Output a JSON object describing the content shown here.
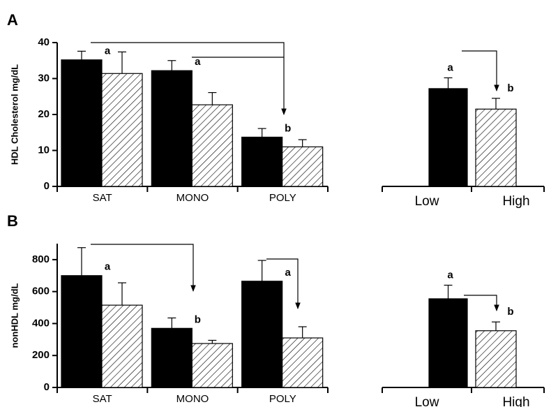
{
  "chart_data": [
    {
      "type": "bar",
      "panel": "A",
      "ylabel": "HDL Cholesterol mg/dL",
      "categories": [
        "SAT",
        "MONO",
        "POLY"
      ],
      "ylim": [
        0,
        40
      ],
      "yticks": [
        0,
        10,
        20,
        30,
        40
      ],
      "series": [
        {
          "color": "#000000",
          "fill": "solid",
          "values": [
            35.2,
            32.2,
            13.7
          ],
          "errors": [
            2.4,
            2.8,
            2.4
          ]
        },
        {
          "color": "#000000",
          "fill": "hatched",
          "values": [
            31.4,
            22.7,
            11.0
          ],
          "errors": [
            6.0,
            3.4,
            2.0
          ]
        }
      ],
      "letters": [
        "a",
        "a",
        "b"
      ]
    },
    {
      "type": "pairbar",
      "categories": [
        "Low",
        "High"
      ],
      "ylim": [
        0,
        40
      ],
      "color": "#000000",
      "fills": [
        "solid",
        "hatched"
      ],
      "values": [
        27.2,
        21.5
      ],
      "errors": [
        3.0,
        3.0
      ],
      "letters": [
        "a",
        "b"
      ]
    },
    {
      "type": "bar",
      "panel": "B",
      "ylabel": "nonHDL mg/dL",
      "categories": [
        "SAT",
        "MONO",
        "POLY"
      ],
      "ylim": [
        0,
        900
      ],
      "yticks": [
        0,
        200,
        400,
        600,
        800
      ],
      "series": [
        {
          "color": "#000000",
          "fill": "solid",
          "values": [
            700,
            370,
            665
          ],
          "errors": [
            175,
            65,
            130
          ]
        },
        {
          "color": "#000000",
          "fill": "hatched",
          "values": [
            515,
            275,
            310
          ],
          "errors": [
            140,
            20,
            70
          ]
        }
      ],
      "letters": [
        "a",
        "b",
        "a"
      ]
    },
    {
      "type": "pairbar",
      "categories": [
        "Low",
        "High"
      ],
      "ylim": [
        0,
        900
      ],
      "color": "#000000",
      "fills": [
        "solid",
        "hatched"
      ],
      "values": [
        555,
        355
      ],
      "errors": [
        85,
        55
      ],
      "letters": [
        "a",
        "b"
      ]
    }
  ]
}
